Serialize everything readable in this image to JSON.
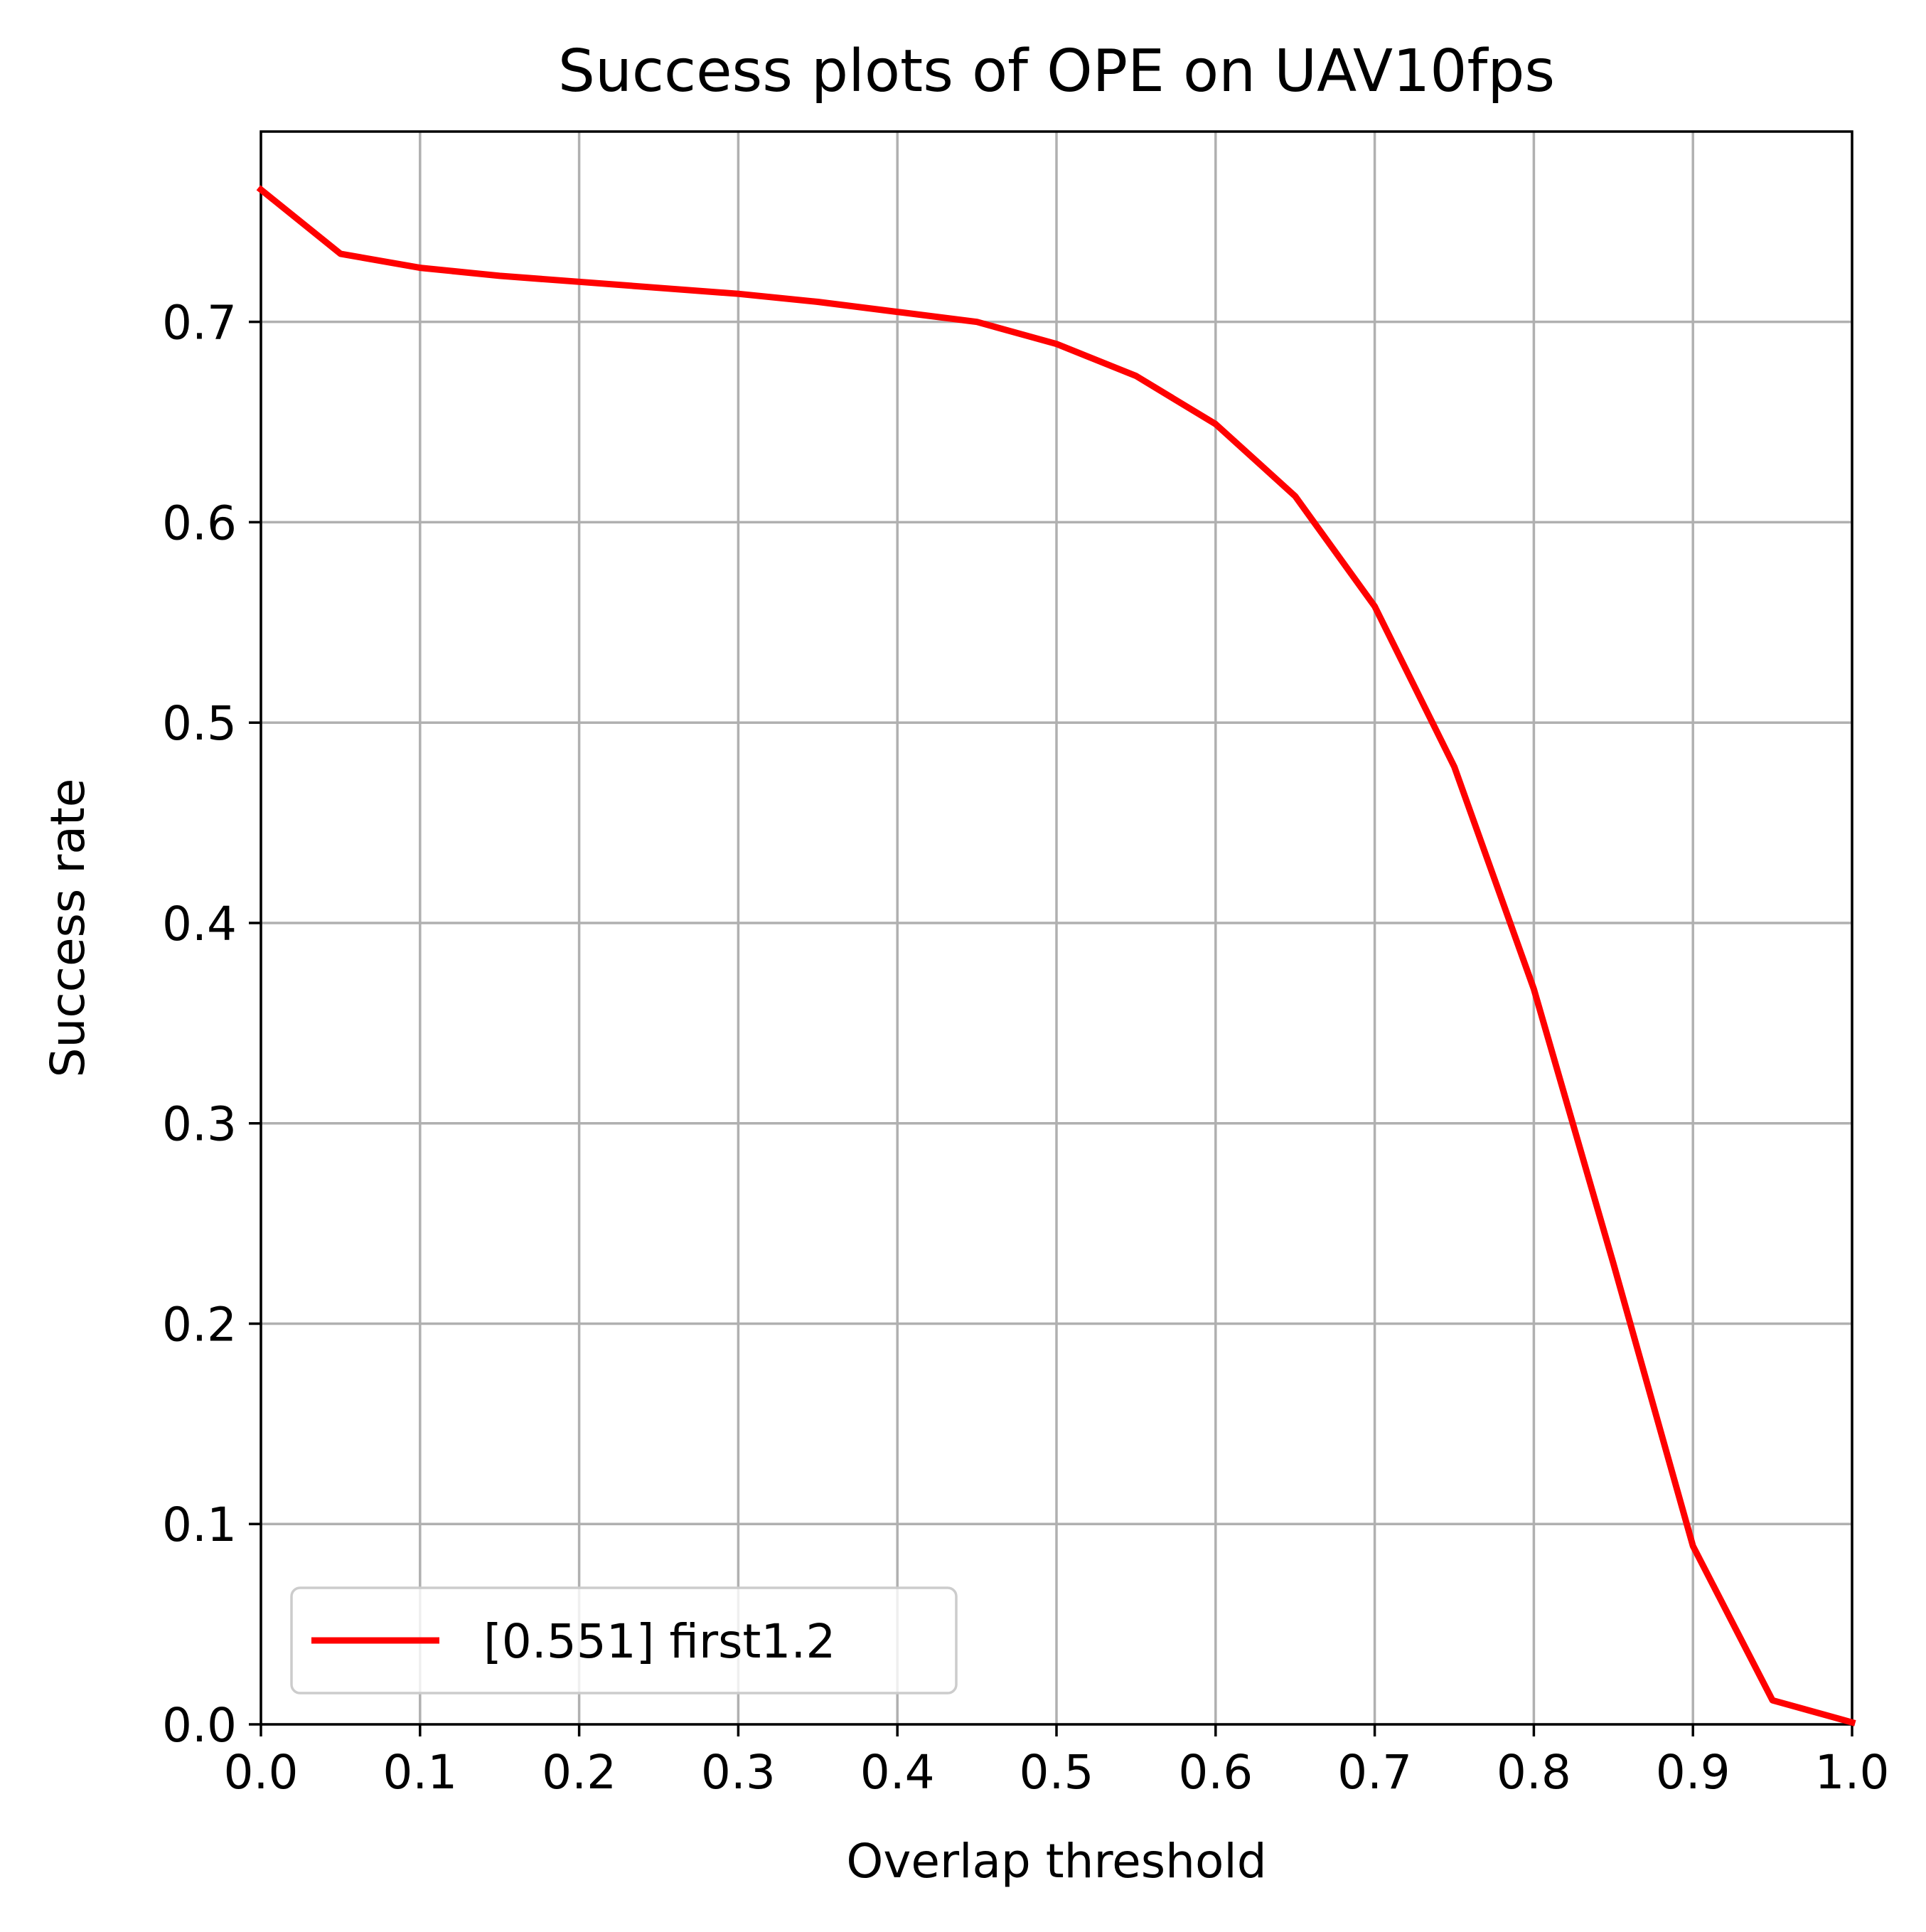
{
  "chart_data": {
    "type": "line",
    "title": "Success plots of OPE on UAV10fps",
    "xlabel": "Overlap threshold",
    "ylabel": "Success rate",
    "xlim": [
      0.0,
      1.0
    ],
    "ylim": [
      0.0,
      0.795
    ],
    "xticks": [
      "0.0",
      "0.1",
      "0.2",
      "0.3",
      "0.4",
      "0.5",
      "0.6",
      "0.7",
      "0.8",
      "0.9",
      "1.0"
    ],
    "yticks": [
      "0.0",
      "0.1",
      "0.2",
      "0.3",
      "0.4",
      "0.5",
      "0.6",
      "0.7"
    ],
    "grid": true,
    "legend_position": "lower-left",
    "series": [
      {
        "name": "[0.551] first1.2",
        "color": "#ff0000",
        "x": [
          0.0,
          0.05,
          0.1,
          0.15,
          0.2,
          0.25,
          0.3,
          0.35,
          0.4,
          0.45,
          0.5,
          0.55,
          0.6,
          0.65,
          0.7,
          0.75,
          0.8,
          0.85,
          0.9,
          0.95,
          1.0
        ],
        "y": [
          0.766,
          0.734,
          0.727,
          0.723,
          0.72,
          0.717,
          0.714,
          0.71,
          0.705,
          0.7,
          0.689,
          0.673,
          0.649,
          0.613,
          0.558,
          0.478,
          0.367,
          0.23,
          0.089,
          0.012,
          0.001
        ]
      }
    ]
  }
}
